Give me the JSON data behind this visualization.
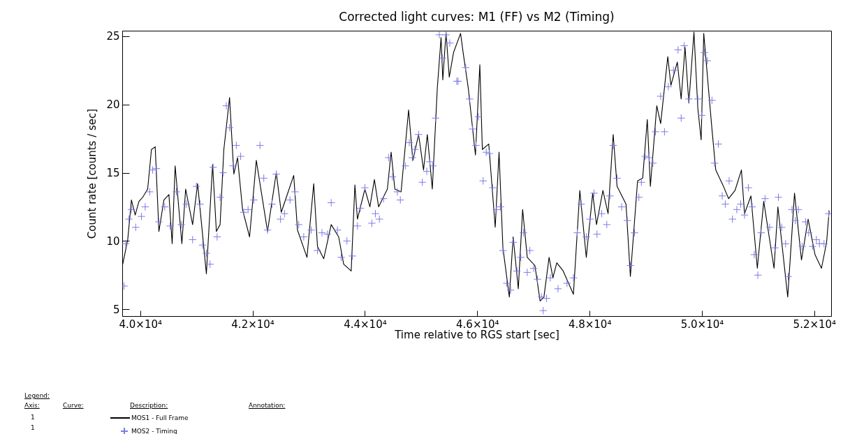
{
  "chart_data": {
    "type": "line",
    "title": "Corrected light curves: M1 (FF) vs M2 (Timing)",
    "xlabel": "Time relative to RGS start    [sec]",
    "ylabel": "Count rate    [counts / sec]",
    "xlim": [
      39680,
      52300
    ],
    "ylim": [
      4.5,
      25.4
    ],
    "xticks": [
      {
        "value": 40000,
        "label": "4.0×10⁴"
      },
      {
        "value": 42000,
        "label": "4.2×10⁴"
      },
      {
        "value": 44000,
        "label": "4.4×10⁴"
      },
      {
        "value": 46000,
        "label": "4.6×10⁴"
      },
      {
        "value": 48000,
        "label": "4.8×10⁴"
      },
      {
        "value": 50000,
        "label": "5.0×10⁴"
      },
      {
        "value": 52000,
        "label": "5.2×10⁴"
      }
    ],
    "yticks": [
      5,
      10,
      15,
      20,
      25
    ],
    "legend": "bottom left",
    "annotations": [
      "Legend:",
      "Axis:",
      "Curve:",
      "Description:",
      "Annotation:",
      "1",
      "1"
    ],
    "series": [
      {
        "name": "MOS1 - Full Frame",
        "type": "line",
        "color": "#000000",
        "line_style": "solid",
        "x": [
          39689,
          39778,
          39844,
          39911,
          39978,
          40044,
          40133,
          40200,
          40267,
          40333,
          40422,
          40511,
          40569,
          40622,
          40742,
          40809,
          40933,
          41022,
          41178,
          41289,
          41356,
          41422,
          41489,
          41591,
          41667,
          41733,
          41822,
          41947,
          42067,
          42267,
          42422,
          42511,
          42733,
          42800,
          42969,
          43089,
          43156,
          43267,
          43400,
          43533,
          43622,
          43756,
          43822,
          43867,
          44000,
          44089,
          44169,
          44244,
          44400,
          44467,
          44533,
          44644,
          44778,
          44853,
          44956,
          45044,
          45111,
          45200,
          45289,
          45356,
          45387,
          45444,
          45502,
          45578,
          45703,
          45749,
          45840,
          45968,
          46046,
          46091,
          46205,
          46320,
          46388,
          46457,
          46571,
          46639,
          46731,
          46808,
          46890,
          47027,
          47119,
          47187,
          47279,
          47347,
          47416,
          47530,
          47712,
          47826,
          47941,
          48055,
          48123,
          48237,
          48329,
          48420,
          48489,
          48648,
          48726,
          48854,
          48945,
          49027,
          49082,
          49196,
          49265,
          49392,
          49447,
          49562,
          49630,
          49699,
          49767,
          49858,
          49927,
          49986,
          50032,
          50178,
          50246,
          50383,
          50475,
          50589,
          50703,
          50758,
          50872,
          50986,
          51100,
          51283,
          51352,
          51527,
          51648,
          51772,
          51890,
          52013,
          52128,
          52219,
          52265
        ],
        "values": [
          8.3,
          10.1,
          13.0,
          11.9,
          12.9,
          13.2,
          13.8,
          16.7,
          16.9,
          10.7,
          13.0,
          13.4,
          9.8,
          15.5,
          9.8,
          13.8,
          11.2,
          14.2,
          7.6,
          15.6,
          10.7,
          11.2,
          16.7,
          20.5,
          14.9,
          16.1,
          12.3,
          10.3,
          15.9,
          10.7,
          15.0,
          12.1,
          14.8,
          10.8,
          8.8,
          14.2,
          9.6,
          8.7,
          11.2,
          10.3,
          8.3,
          7.8,
          14.1,
          11.6,
          13.8,
          12.5,
          14.5,
          12.5,
          13.8,
          16.5,
          13.8,
          13.6,
          19.6,
          15.9,
          17.8,
          15.2,
          17.8,
          13.8,
          21.2,
          24.9,
          21.8,
          25.3,
          22.0,
          23.8,
          25.2,
          23.8,
          21.2,
          16.3,
          22.9,
          16.7,
          17.1,
          11.0,
          16.5,
          9.5,
          5.9,
          10.3,
          6.5,
          12.3,
          8.8,
          8.2,
          5.6,
          5.9,
          8.8,
          7.3,
          8.4,
          7.8,
          6.1,
          13.7,
          8.8,
          13.5,
          11.2,
          13.7,
          12.0,
          17.8,
          14.0,
          12.7,
          7.4,
          14.4,
          14.6,
          18.9,
          14.0,
          19.9,
          18.6,
          23.5,
          21.4,
          23.1,
          20.4,
          24.2,
          20.1,
          25.3,
          19.7,
          17.4,
          25.2,
          18.2,
          15.2,
          14.0,
          13.1,
          13.7,
          15.2,
          12.0,
          13.3,
          8.0,
          12.9,
          8.0,
          12.5,
          5.9,
          13.5,
          8.6,
          11.6,
          9.0,
          8.0,
          9.9,
          12.2
        ]
      },
      {
        "name": "MOS2 - Timing",
        "type": "scatter",
        "marker": "cross",
        "color": "#7b7be6",
        "x": [
          39711,
          39742,
          39800,
          39844,
          39920,
          40022,
          40089,
          40169,
          40222,
          40289,
          40333,
          40436,
          40533,
          40644,
          40733,
          40822,
          40933,
          41000,
          41067,
          41111,
          41178,
          41244,
          41298,
          41369,
          41422,
          41476,
          41533,
          41591,
          41653,
          41711,
          41787,
          41844,
          41920,
          42022,
          42133,
          42200,
          42267,
          42347,
          42422,
          42498,
          42569,
          42667,
          42756,
          42822,
          42911,
          43044,
          43156,
          43236,
          43333,
          43400,
          43511,
          43578,
          43680,
          43778,
          43867,
          43920,
          44000,
          44124,
          44187,
          44258,
          44333,
          44422,
          44489,
          44578,
          44631,
          44720,
          44791,
          44844,
          44889,
          44956,
          45022,
          45102,
          45156,
          45209,
          45258,
          45324,
          45378,
          45444,
          45511,
          45636,
          45658,
          45795,
          45863,
          45918,
          45977,
          46023,
          46105,
          46160,
          46215,
          46274,
          46342,
          46411,
          46457,
          46525,
          46594,
          46639,
          46708,
          46776,
          46822,
          46890,
          46936,
          47005,
          47073,
          47142,
          47174,
          47233,
          47301,
          47438,
          47598,
          47712,
          47781,
          47849,
          47941,
          48009,
          48078,
          48132,
          48215,
          48306,
          48361,
          48420,
          48489,
          48571,
          48671,
          48726,
          48799,
          48877,
          48922,
          48991,
          49059,
          49128,
          49174,
          49265,
          49333,
          49402,
          49493,
          49575,
          49630,
          49685,
          49767,
          49927,
          49995,
          50041,
          50096,
          50178,
          50224,
          50292,
          50361,
          50415,
          50484,
          50543,
          50621,
          50689,
          50758,
          50826,
          50895,
          50931,
          50995,
          51054,
          51123,
          51205,
          51297,
          51361,
          51420,
          51489,
          51535,
          51603,
          51662,
          51717,
          51785,
          51845,
          51900,
          51968,
          52037,
          52091,
          52173,
          52256
        ],
        "values": [
          6.7,
          9.8,
          11.6,
          12.3,
          11.0,
          11.8,
          12.5,
          13.6,
          15.2,
          15.3,
          11.4,
          12.5,
          11.1,
          13.6,
          11.2,
          12.7,
          10.1,
          14.0,
          12.7,
          9.7,
          9.1,
          8.3,
          15.4,
          10.3,
          13.2,
          15.0,
          19.9,
          18.3,
          15.5,
          17.0,
          16.2,
          12.1,
          12.3,
          13.0,
          17.0,
          14.6,
          10.8,
          12.7,
          14.9,
          11.6,
          12.0,
          13.0,
          13.6,
          11.2,
          10.3,
          10.8,
          9.3,
          10.6,
          10.5,
          12.8,
          10.8,
          8.8,
          10.0,
          8.9,
          11.1,
          12.4,
          13.9,
          11.3,
          12.0,
          11.6,
          13.1,
          16.1,
          14.7,
          13.6,
          13.0,
          15.5,
          17.2,
          16.1,
          16.7,
          17.8,
          14.3,
          15.1,
          15.8,
          15.5,
          19.0,
          25.1,
          23.4,
          25.1,
          24.5,
          21.7,
          21.7,
          22.7,
          20.4,
          18.2,
          17.0,
          19.1,
          14.4,
          16.5,
          16.4,
          13.9,
          12.3,
          12.5,
          9.3,
          6.9,
          6.4,
          9.9,
          7.8,
          8.8,
          10.6,
          7.7,
          9.3,
          8.0,
          7.2,
          5.9,
          4.9,
          5.8,
          7.3,
          6.5,
          6.9,
          7.3,
          10.6,
          12.7,
          10.3,
          11.6,
          13.5,
          10.5,
          12.0,
          11.2,
          13.3,
          17.0,
          14.6,
          12.5,
          11.5,
          8.2,
          10.6,
          13.2,
          14.3,
          16.2,
          16.1,
          15.7,
          18.0,
          20.6,
          18.0,
          21.3,
          22.5,
          24.0,
          19.0,
          24.3,
          20.4,
          20.4,
          19.2,
          23.8,
          23.2,
          20.3,
          15.7,
          17.1,
          13.3,
          12.7,
          14.4,
          11.6,
          12.3,
          12.7,
          11.9,
          13.9,
          12.5,
          9.0,
          7.5,
          10.6,
          13.1,
          11.0,
          9.5,
          13.2,
          11.0,
          9.8,
          7.4,
          12.3,
          11.5,
          12.3,
          9.6,
          11.4,
          10.6,
          9.6,
          10.1,
          9.8,
          9.8,
          12.0
        ]
      }
    ]
  }
}
